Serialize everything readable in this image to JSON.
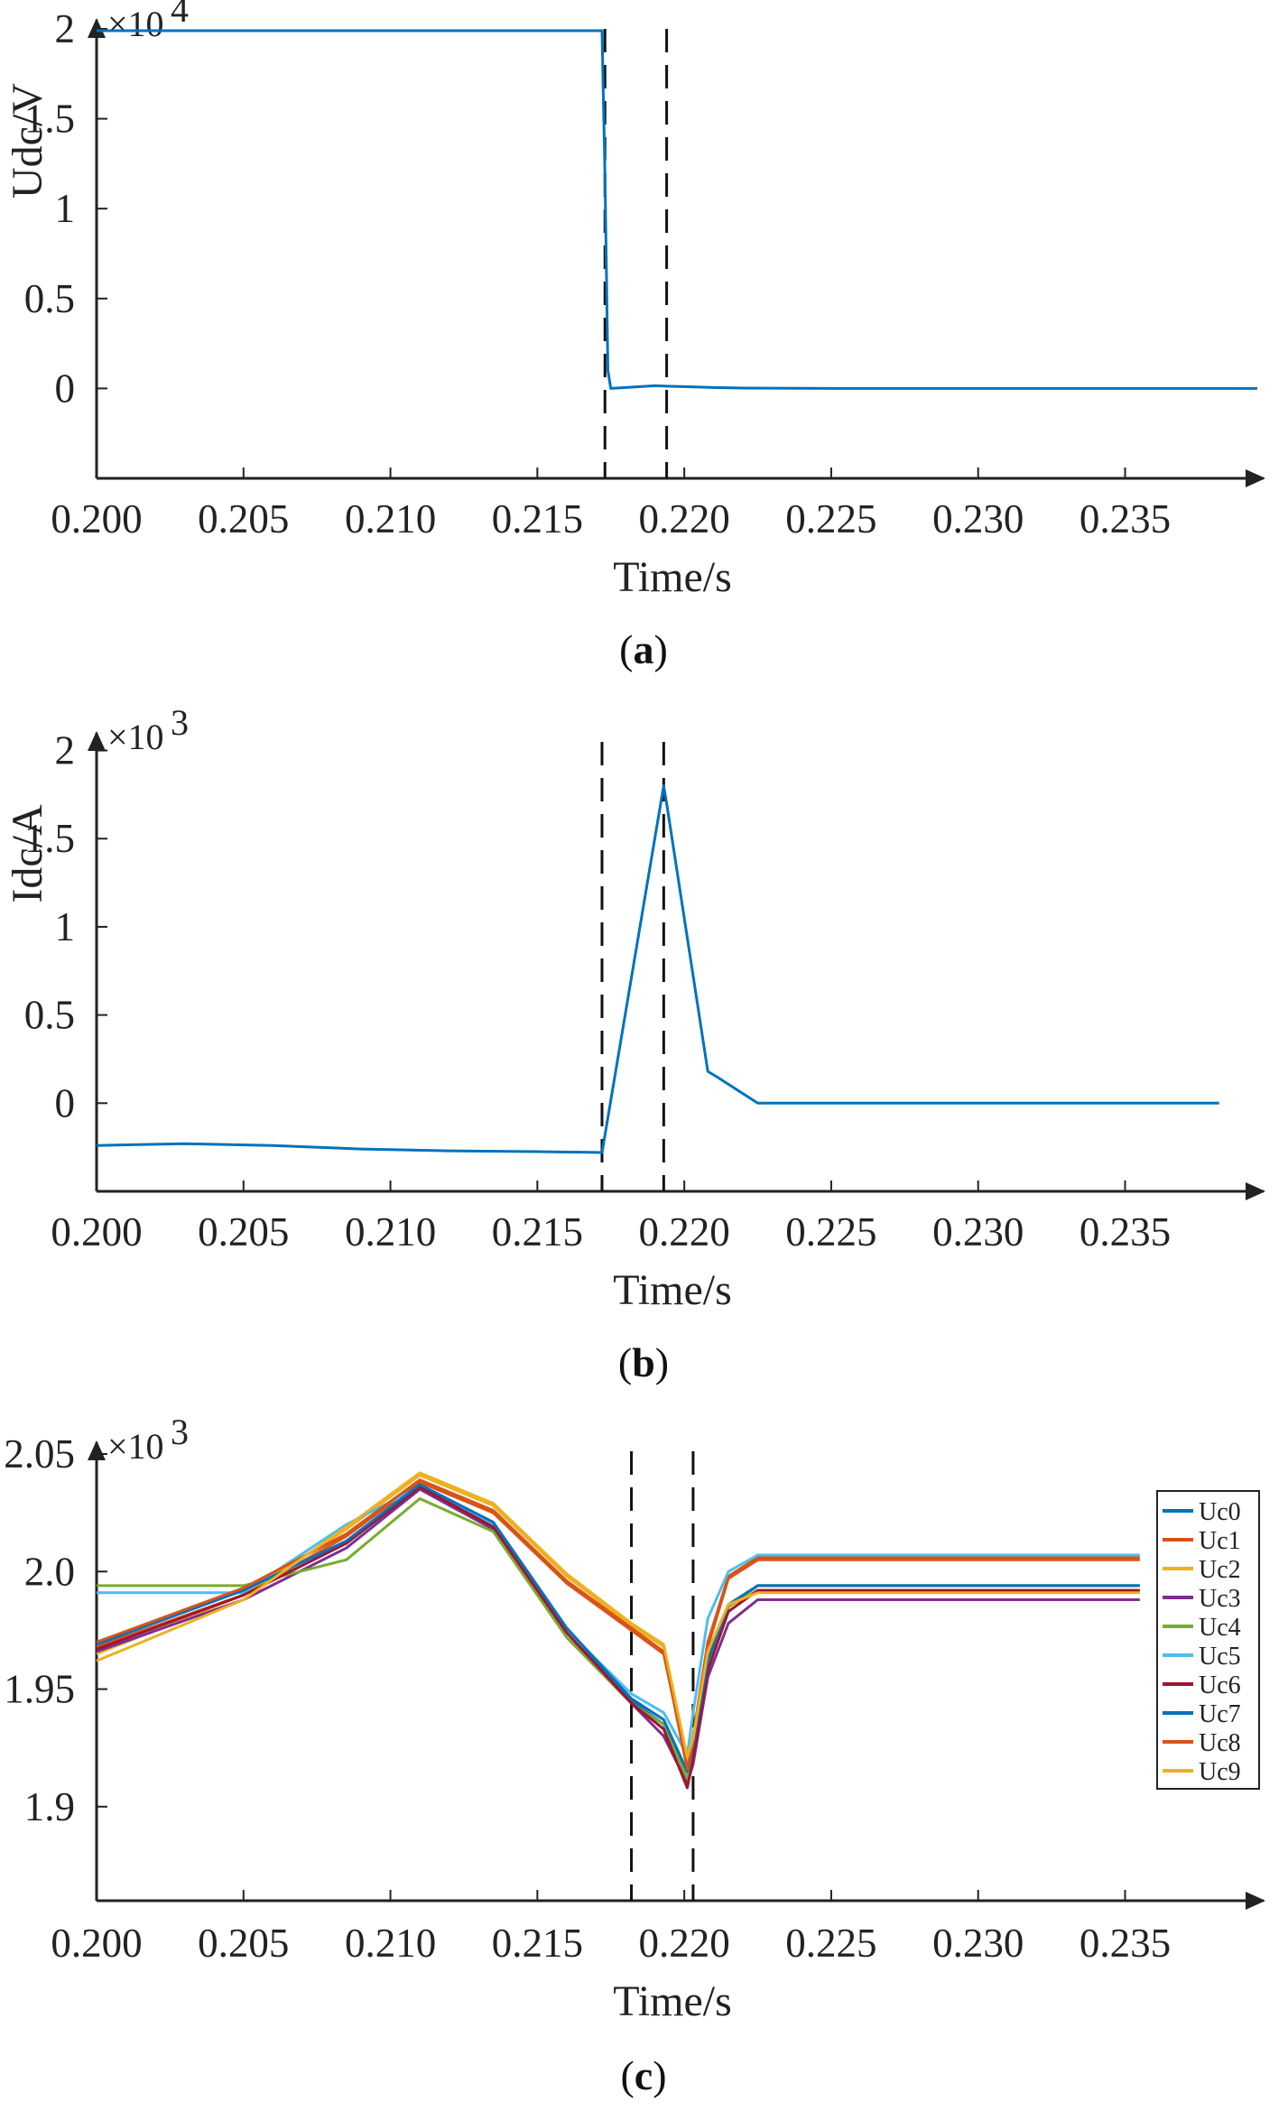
{
  "chart_data": [
    {
      "type": "line",
      "panel_label": "a",
      "xlabel": "Time/s",
      "ylabel": "Udc/V",
      "y_multiplier": "×10",
      "y_exponent": "4",
      "xlim": [
        0.2,
        0.2395
      ],
      "ylim": [
        -0.5,
        2.05
      ],
      "x_ticks": [
        0.2,
        0.205,
        0.21,
        0.215,
        0.22,
        0.225,
        0.23,
        0.235
      ],
      "x_tick_labels": [
        "0.200",
        "0.205",
        "0.210",
        "0.215",
        "0.220",
        "0.225",
        "0.230",
        "0.235"
      ],
      "y_ticks": [
        0,
        0.5,
        1,
        1.5,
        2
      ],
      "y_tick_labels": [
        "0",
        "0.5",
        "1",
        "1.5",
        "2"
      ],
      "vlines": [
        0.2173,
        0.2194
      ],
      "grid": false,
      "series": [
        {
          "color": "#0072BD",
          "x": [
            0.2,
            0.2172,
            0.2173,
            0.2174,
            0.2175,
            0.218,
            0.2185,
            0.219,
            0.2195,
            0.22,
            0.221,
            0.222,
            0.225,
            0.23,
            0.235,
            0.2395
          ],
          "y": [
            1.99,
            1.99,
            1.2,
            0.1,
            0.0,
            0.005,
            0.01,
            0.015,
            0.012,
            0.01,
            0.005,
            0.002,
            0.0,
            0.0,
            0.0,
            0.0
          ]
        }
      ]
    },
    {
      "type": "line",
      "panel_label": "b",
      "xlabel": "Time/s",
      "ylabel": "Idc/A",
      "y_multiplier": "×10",
      "y_exponent": "3",
      "xlim": [
        0.2,
        0.2395
      ],
      "ylim": [
        -0.5,
        2.1
      ],
      "x_ticks": [
        0.2,
        0.205,
        0.21,
        0.215,
        0.22,
        0.225,
        0.23,
        0.235
      ],
      "x_tick_labels": [
        "0.200",
        "0.205",
        "0.210",
        "0.215",
        "0.220",
        "0.225",
        "0.230",
        "0.235"
      ],
      "y_ticks": [
        0,
        0.5,
        1,
        1.5,
        2
      ],
      "y_tick_labels": [
        "0",
        "0.5",
        "1",
        "1.5",
        "2"
      ],
      "vlines": [
        0.2172,
        0.2193
      ],
      "grid": false,
      "series": [
        {
          "color": "#0072BD",
          "x": [
            0.2,
            0.203,
            0.206,
            0.209,
            0.212,
            0.215,
            0.2172,
            0.2193,
            0.2194,
            0.2208,
            0.2211,
            0.2225,
            0.225,
            0.23,
            0.2382
          ],
          "y": [
            -0.24,
            -0.23,
            -0.24,
            -0.26,
            -0.27,
            -0.275,
            -0.28,
            1.8,
            1.7,
            0.18,
            0.15,
            0.0,
            0.0,
            0.0,
            0.0
          ]
        }
      ]
    },
    {
      "type": "line",
      "panel_label": "c",
      "xlabel": "Time/s",
      "ylabel": "",
      "y_multiplier": "×10",
      "y_exponent": "3",
      "xlim": [
        0.2,
        0.2395
      ],
      "ylim": [
        1.86,
        2.055
      ],
      "x_ticks": [
        0.2,
        0.205,
        0.21,
        0.215,
        0.22,
        0.225,
        0.23,
        0.235
      ],
      "x_tick_labels": [
        "0.200",
        "0.205",
        "0.210",
        "0.215",
        "0.220",
        "0.225",
        "0.230",
        "0.235"
      ],
      "y_ticks": [
        1.9,
        1.95,
        2.0,
        2.05
      ],
      "y_tick_labels": [
        "1.9",
        "1.95",
        "2.0",
        "2.05"
      ],
      "vlines": [
        0.2182,
        0.2203
      ],
      "grid": false,
      "legend_position": "right",
      "series": [
        {
          "name": "Uc0",
          "color": "#0072BD",
          "x": [
            0.2,
            0.205,
            0.2085,
            0.211,
            0.2135,
            0.216,
            0.2182,
            0.2193,
            0.2201,
            0.2203,
            0.2208,
            0.2215,
            0.2225,
            0.23,
            0.2355
          ],
          "y": [
            1.967,
            1.99,
            2.012,
            2.036,
            2.02,
            1.975,
            1.945,
            1.935,
            1.912,
            1.925,
            1.96,
            1.985,
            1.994,
            1.994,
            1.994
          ]
        },
        {
          "name": "Uc1",
          "color": "#D95319",
          "x": [
            0.2,
            0.205,
            0.2085,
            0.211,
            0.2135,
            0.216,
            0.2182,
            0.2193,
            0.2201,
            0.2203,
            0.2208,
            0.2215,
            0.2225,
            0.23,
            0.2355
          ],
          "y": [
            1.968,
            1.99,
            2.015,
            2.038,
            2.025,
            1.995,
            1.975,
            1.965,
            1.918,
            1.93,
            1.97,
            1.998,
            2.006,
            2.006,
            2.006
          ]
        },
        {
          "name": "Uc2",
          "color": "#EDB120",
          "x": [
            0.2,
            0.205,
            0.2085,
            0.211,
            0.2135,
            0.216,
            0.2182,
            0.2193,
            0.2201,
            0.2203,
            0.2208,
            0.2215,
            0.2225,
            0.23,
            0.2355
          ],
          "y": [
            1.965,
            1.99,
            2.018,
            2.041,
            2.028,
            1.998,
            1.977,
            1.968,
            1.92,
            1.928,
            1.965,
            1.985,
            1.992,
            1.992,
            1.992
          ]
        },
        {
          "name": "Uc3",
          "color": "#7E2F8E",
          "x": [
            0.2,
            0.205,
            0.2085,
            0.211,
            0.2135,
            0.216,
            0.2182,
            0.2193,
            0.2201,
            0.2203,
            0.2208,
            0.2215,
            0.2225,
            0.23,
            0.2355
          ],
          "y": [
            1.966,
            1.988,
            2.01,
            2.035,
            2.018,
            1.972,
            1.944,
            1.93,
            1.91,
            1.918,
            1.955,
            1.978,
            1.988,
            1.988,
            1.988
          ]
        },
        {
          "name": "Uc4",
          "color": "#77AC30",
          "x": [
            0.2,
            0.205,
            0.2085,
            0.211,
            0.2135,
            0.216,
            0.2182,
            0.2193,
            0.2201,
            0.2203,
            0.2208,
            0.2215,
            0.2225,
            0.23,
            0.2355
          ],
          "y": [
            1.994,
            1.994,
            2.005,
            2.031,
            2.017,
            1.972,
            1.944,
            1.935,
            1.912,
            1.925,
            1.96,
            1.985,
            1.994,
            1.994,
            1.994
          ]
        },
        {
          "name": "Uc5",
          "color": "#4DBEEE",
          "x": [
            0.2,
            0.205,
            0.2085,
            0.211,
            0.2135,
            0.216,
            0.2182,
            0.2193,
            0.2201,
            0.2203,
            0.2208,
            0.2215,
            0.2225,
            0.23,
            0.2355
          ],
          "y": [
            1.991,
            1.991,
            2.02,
            2.036,
            2.02,
            1.975,
            1.948,
            1.94,
            1.922,
            1.94,
            1.98,
            2.0,
            2.007,
            2.007,
            2.007
          ]
        },
        {
          "name": "Uc6",
          "color": "#A2142F",
          "x": [
            0.2,
            0.205,
            0.2085,
            0.211,
            0.2135,
            0.216,
            0.2182,
            0.2193,
            0.2201,
            0.2203,
            0.2208,
            0.2215,
            0.2225,
            0.23,
            0.2355
          ],
          "y": [
            1.967,
            1.99,
            2.012,
            2.036,
            2.019,
            1.974,
            1.944,
            1.933,
            1.908,
            1.92,
            1.958,
            1.983,
            1.992,
            1.992,
            1.992
          ]
        },
        {
          "name": "Uc7",
          "color": "#0072BD",
          "x": [
            0.2,
            0.205,
            0.2085,
            0.211,
            0.2135,
            0.216,
            0.2182,
            0.2193,
            0.2201,
            0.2203,
            0.2208,
            0.2215,
            0.2225,
            0.23,
            0.2355
          ],
          "y": [
            1.969,
            1.992,
            2.013,
            2.037,
            2.021,
            1.976,
            1.946,
            1.937,
            1.915,
            1.926,
            1.962,
            1.986,
            1.994,
            1.994,
            1.994
          ]
        },
        {
          "name": "Uc8",
          "color": "#D95319",
          "x": [
            0.2,
            0.205,
            0.2085,
            0.211,
            0.2135,
            0.216,
            0.2182,
            0.2193,
            0.2201,
            0.2203,
            0.2208,
            0.2215,
            0.2225,
            0.23,
            0.2355
          ],
          "y": [
            1.97,
            1.993,
            2.016,
            2.039,
            2.026,
            1.996,
            1.976,
            1.966,
            1.916,
            1.928,
            1.968,
            1.997,
            2.005,
            2.005,
            2.005
          ]
        },
        {
          "name": "Uc9",
          "color": "#EDB120",
          "x": [
            0.2,
            0.205,
            0.2085,
            0.211,
            0.2135,
            0.216,
            0.2182,
            0.2193,
            0.2201,
            0.2203,
            0.2208,
            0.2215,
            0.2225,
            0.23,
            0.2355
          ],
          "y": [
            1.962,
            1.988,
            2.019,
            2.042,
            2.029,
            1.999,
            1.978,
            1.969,
            1.921,
            1.929,
            1.966,
            1.986,
            1.991,
            1.991,
            1.991
          ]
        }
      ]
    }
  ]
}
